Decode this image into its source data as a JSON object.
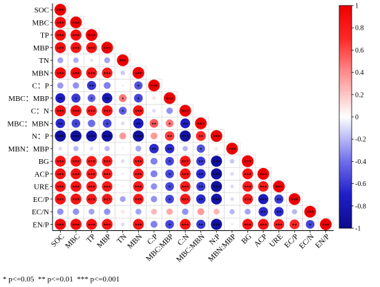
{
  "chart_data": {
    "type": "heatmap",
    "grid": true,
    "colorbar_position": "right",
    "row_labels": [
      "SOC",
      "MBC",
      "TP",
      "MBP",
      "TN",
      "MBN",
      "C：P",
      "MBC：MBP",
      "C：N",
      "MBC：MBN",
      "N：P",
      "MBN：MBP",
      "BG",
      "ACP",
      "URE",
      "EC/P",
      "EC/N",
      "EN/P"
    ],
    "col_labels": [
      "SOC",
      "MBC",
      "TP",
      "MBP",
      "TN",
      "MBN",
      "C:P",
      "MBC:MBP",
      "C:N",
      "MBC:MBN",
      "N:P",
      "MBN:MBP",
      "BG",
      "ACP",
      "URE",
      "EC/P",
      "EC/N",
      "EN/P"
    ],
    "values": [
      [
        1
      ],
      [
        0.9,
        1
      ],
      [
        0.9,
        0.88,
        1
      ],
      [
        0.88,
        0.85,
        0.85,
        1
      ],
      [
        -0.25,
        -0.22,
        -0.08,
        -0.25,
        1
      ],
      [
        0.9,
        0.9,
        0.85,
        0.8,
        -0.15,
        1
      ],
      [
        -0.28,
        -0.3,
        -0.6,
        -0.35,
        0.05,
        -0.5,
        1
      ],
      [
        -0.7,
        -0.6,
        -0.45,
        -0.78,
        0.45,
        -0.55,
        0.1,
        1
      ],
      [
        0.9,
        0.88,
        0.8,
        0.85,
        -0.45,
        0.85,
        -0.1,
        -0.3,
        1
      ],
      [
        -0.65,
        -0.55,
        -0.4,
        -0.55,
        -0.1,
        -0.75,
        0.55,
        0.45,
        -0.7,
        1
      ],
      [
        -0.9,
        -0.9,
        -0.85,
        -0.9,
        0.35,
        -0.9,
        0.35,
        0.65,
        -0.9,
        0.7,
        1
      ],
      [
        -0.1,
        -0.2,
        -0.1,
        -0.2,
        0.05,
        -0.25,
        -0.65,
        -0.65,
        -0.2,
        -0.5,
        0.1,
        1
      ],
      [
        0.85,
        0.85,
        0.8,
        0.8,
        -0.1,
        0.8,
        -0.35,
        -0.55,
        0.85,
        -0.6,
        -0.9,
        -0.15,
        1
      ],
      [
        0.85,
        0.85,
        0.8,
        0.8,
        -0.05,
        0.8,
        -0.35,
        -0.55,
        0.85,
        -0.65,
        -0.9,
        -0.1,
        0.85,
        1
      ],
      [
        0.85,
        0.85,
        0.8,
        0.8,
        0.05,
        0.8,
        -0.3,
        -0.55,
        0.8,
        -0.6,
        -0.9,
        -0.1,
        0.8,
        0.8,
        1
      ],
      [
        0.85,
        0.85,
        0.8,
        0.8,
        -0.25,
        0.8,
        -0.3,
        -0.55,
        0.8,
        -0.65,
        -0.85,
        -0.1,
        0.8,
        -0.75,
        -0.6,
        1
      ],
      [
        -0.3,
        -0.3,
        -0.25,
        -0.3,
        0.1,
        -0.25,
        0.25,
        0.3,
        -0.3,
        0.35,
        0.25,
        -0.2,
        -0.25,
        -0.65,
        -0.65,
        -0.2,
        1
      ],
      [
        0.9,
        0.9,
        0.85,
        0.85,
        -0.1,
        0.85,
        -0.35,
        -0.55,
        0.85,
        -0.6,
        -0.9,
        -0.05,
        0.85,
        0.85,
        0.8,
        0.7,
        -0.55,
        1
      ]
    ],
    "stars": [
      [
        "***"
      ],
      [
        "***",
        "***"
      ],
      [
        "***",
        "***",
        "***"
      ],
      [
        "***",
        "***",
        "***",
        "***"
      ],
      [
        "",
        "",
        "",
        "",
        "***"
      ],
      [
        "***",
        "***",
        "***",
        "***",
        "",
        "***"
      ],
      [
        "",
        "",
        "**",
        "",
        "",
        "*",
        "***"
      ],
      [
        "**",
        "*",
        "*",
        "**",
        "*",
        "*",
        "",
        "***"
      ],
      [
        "***",
        "***",
        "***",
        "***",
        "*",
        "***",
        "",
        "",
        "***"
      ],
      [
        "**",
        "*",
        "",
        "*",
        "",
        "**",
        "**",
        "*",
        "**",
        "***"
      ],
      [
        "***",
        "***",
        "***",
        "***",
        "",
        "***",
        "",
        "**",
        "***",
        "**",
        "***"
      ],
      [
        "",
        "",
        "",
        "",
        "",
        "",
        "**",
        "**",
        "",
        "*",
        "",
        "***"
      ],
      [
        "***",
        "***",
        "***",
        "***",
        "",
        "***",
        "",
        "*",
        "***",
        "**",
        "***",
        "",
        "***"
      ],
      [
        "***",
        "***",
        "***",
        "***",
        "",
        "***",
        "",
        "*",
        "***",
        "**",
        "***",
        "",
        "***",
        "***"
      ],
      [
        "***",
        "***",
        "***",
        "***",
        "",
        "***",
        "",
        "*",
        "***",
        "**",
        "***",
        "",
        "***",
        "***",
        "***"
      ],
      [
        "***",
        "***",
        "***",
        "***",
        "",
        "***",
        "",
        "*",
        "***",
        "**",
        "***",
        "",
        "***",
        "***",
        "**",
        "***"
      ],
      [
        "",
        "",
        "",
        "",
        "",
        "",
        "",
        "",
        "",
        "",
        "",
        "",
        "",
        "**",
        "**",
        "",
        "***"
      ],
      [
        "***",
        "***",
        "***",
        "***",
        "",
        "***",
        "",
        "*",
        "***",
        "**",
        "***",
        "",
        "***",
        "***",
        "***",
        "**",
        "*",
        "***"
      ]
    ],
    "colorbar": {
      "range": [
        -1,
        1
      ],
      "ticks": [
        1,
        0.8,
        0.6,
        0.4,
        0.2,
        0,
        -0.2,
        -0.4,
        -0.6,
        -0.8,
        -1
      ],
      "color_stops": [
        [
          -1,
          "#0c0c8c"
        ],
        [
          -0.7,
          "#1e1ec8"
        ],
        [
          -0.4,
          "#6e6eeb"
        ],
        [
          0,
          "#ffffff"
        ],
        [
          0.4,
          "#ff8c8c"
        ],
        [
          0.7,
          "#ff2828"
        ],
        [
          1,
          "#ee0000"
        ]
      ],
      "grid_color": "#d4d4d4"
    },
    "significance_note": "* p<=0.05  ** p<=0.01  *** p<=0.001"
  }
}
